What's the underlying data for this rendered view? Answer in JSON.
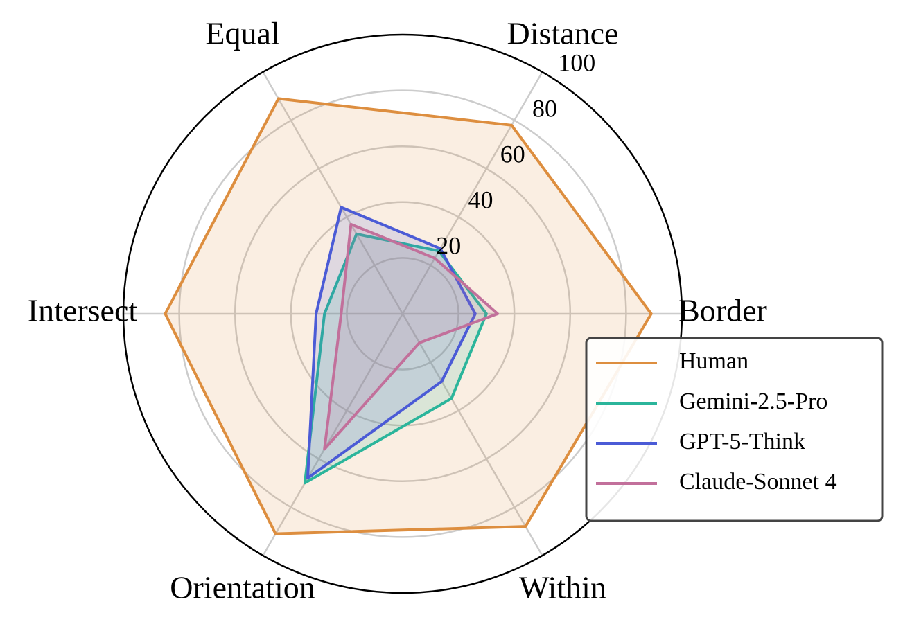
{
  "chart_data": {
    "type": "radar",
    "categories": [
      "Border",
      "Distance",
      "Equal",
      "Intersect",
      "Orientation",
      "Within"
    ],
    "rlim": [
      0,
      100
    ],
    "rticks": [
      20,
      40,
      60,
      80,
      100
    ],
    "grid": true,
    "legend": "lower right",
    "series": [
      {
        "name": "Human",
        "color": "#dd8e3f",
        "values": [
          89,
          78,
          89,
          85,
          91,
          88
        ]
      },
      {
        "name": "Gemini-2.5-Pro",
        "color": "#2bb59b",
        "values": [
          30,
          26,
          33,
          28,
          70,
          35
        ]
      },
      {
        "name": "GPT-5-Think",
        "color": "#4b5bd6",
        "values": [
          26,
          27,
          44,
          31,
          68,
          28
        ]
      },
      {
        "name": "Claude-Sonnet 4",
        "color": "#c2709b",
        "values": [
          34,
          23,
          37,
          22,
          56,
          12
        ]
      }
    ]
  }
}
